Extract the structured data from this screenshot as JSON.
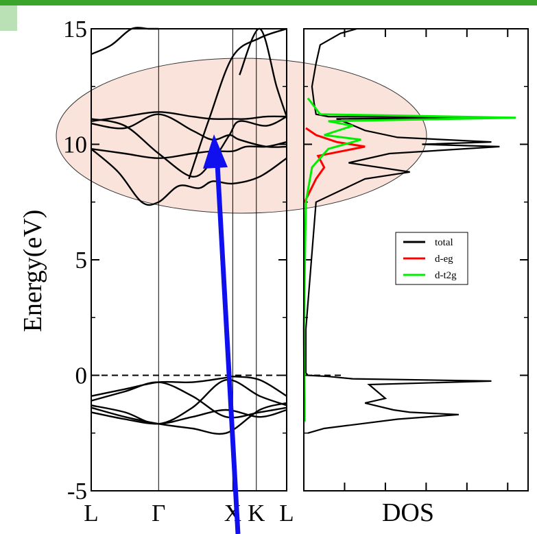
{
  "colors": {
    "frame_green": "#3aa52a",
    "band_line": "#000000",
    "highlight_fill": "#f7d9cf",
    "highlight_stroke": "#333333",
    "arrow": "#1010ee",
    "total": "#000000",
    "d_eg": "#ff0000",
    "d_t2g": "#00ee00"
  },
  "chart_data": [
    {
      "type": "line",
      "panel": "band-structure",
      "ylabel": "Energy(eV)",
      "ylim": [
        -5,
        15
      ],
      "yticks": [
        -5,
        0,
        5,
        10,
        15
      ],
      "ytick_labels": [
        "-5",
        "0",
        "5",
        "10",
        "15"
      ],
      "kpath_labels": [
        "L",
        "Γ",
        "X",
        "K",
        "L"
      ],
      "kpath_positions": [
        0,
        1,
        2.1,
        2.45,
        2.9
      ],
      "fermi_level": 0,
      "series": [
        {
          "x": [
            0,
            0.3,
            0.6,
            0.85,
            1.0
          ],
          "y": [
            13.9,
            14.3,
            15.0,
            15.0,
            15.0
          ]
        },
        {
          "x": [
            2.2,
            2.5,
            2.75,
            2.9
          ],
          "y": [
            13.0,
            15.0,
            12.5,
            11.2
          ]
        },
        {
          "x": [
            0,
            0.5,
            1.0,
            1.5,
            1.8,
            2.1,
            2.3,
            2.6,
            2.9
          ],
          "y": [
            11.0,
            11.2,
            11.4,
            11.2,
            11.1,
            11.1,
            11.1,
            11.2,
            11.2
          ]
        },
        {
          "x": [
            0,
            0.5,
            1.0,
            1.5,
            1.8,
            2.05,
            2.2,
            2.6,
            2.9
          ],
          "y": [
            11.1,
            10.8,
            9.6,
            8.6,
            9.3,
            10.4,
            11.0,
            10.8,
            11.2
          ]
        },
        {
          "x": [
            0,
            0.5,
            1.0,
            1.5,
            1.8,
            2.05,
            2.2,
            2.6,
            2.9
          ],
          "y": [
            10.9,
            10.7,
            11.3,
            10.6,
            10.2,
            10.4,
            10.2,
            9.9,
            9.9
          ]
        },
        {
          "x": [
            0,
            0.5,
            1.0,
            1.5,
            1.8,
            2.1,
            2.3,
            2.6,
            2.9
          ],
          "y": [
            9.8,
            9.6,
            9.4,
            9.6,
            9.7,
            9.7,
            9.9,
            9.9,
            10.1
          ]
        },
        {
          "x": [
            0,
            0.4,
            0.75,
            1.0,
            1.3,
            1.6,
            1.8,
            2.1,
            2.5,
            2.9
          ],
          "y": [
            9.8,
            8.8,
            7.5,
            7.5,
            8.2,
            8.1,
            8.4,
            8.3,
            8.6,
            9.4
          ]
        },
        {
          "x": [
            1.45,
            1.75,
            2.1,
            2.5,
            2.9
          ],
          "y": [
            8.5,
            11.1,
            13.8,
            14.6,
            15.0
          ]
        },
        {
          "x": [
            0,
            0.5,
            1.0,
            1.5,
            2.0,
            2.1,
            2.5,
            2.9
          ],
          "y": [
            -0.9,
            -0.6,
            -0.3,
            -0.3,
            -0.1,
            -0.05,
            -0.2,
            -0.9
          ]
        },
        {
          "x": [
            0,
            0.5,
            1.0,
            1.5,
            2.0,
            2.5,
            2.9
          ],
          "y": [
            -1.1,
            -0.7,
            -0.3,
            -0.9,
            -1.8,
            -1.6,
            -1.4
          ]
        },
        {
          "x": [
            0,
            0.5,
            1.0,
            1.5,
            2.0,
            2.5,
            2.9
          ],
          "y": [
            -1.3,
            -1.6,
            -2.1,
            -1.4,
            -0.2,
            -0.9,
            -1.3
          ]
        },
        {
          "x": [
            0,
            0.5,
            1.0,
            1.5,
            2.0,
            2.5,
            2.9
          ],
          "y": [
            -1.4,
            -1.8,
            -2.1,
            -2.3,
            -2.5,
            -1.5,
            -1.2
          ]
        },
        {
          "x": [
            0,
            0.5,
            1.0,
            1.5,
            2.0,
            2.5,
            2.9
          ],
          "y": [
            -1.6,
            -1.9,
            -2.1,
            -1.8,
            -1.5,
            -1.8,
            -1.5
          ]
        }
      ]
    },
    {
      "type": "line",
      "panel": "dos",
      "xlabel": "DOS",
      "ylim": [
        -5,
        15
      ],
      "legend_position": "center-right",
      "legend": [
        "total",
        "d-eg",
        "d-t2g"
      ],
      "series": [
        {
          "name": "total",
          "y": [
            -2.5,
            -2.3,
            -1.9,
            -1.7,
            -1.6,
            -1.5,
            -1.2,
            -1.0,
            -0.7,
            -0.4,
            -0.25,
            -0.15,
            -0.05,
            0.0,
            0.1,
            2.0,
            7.5,
            8.5,
            8.8,
            9.2,
            9.6,
            9.9,
            10.0,
            10.1,
            10.3,
            10.6,
            10.9,
            11.1,
            11.15,
            11.2,
            11.3,
            11.8,
            12.5,
            13.5,
            14.3,
            14.8,
            15.0
          ],
          "x": [
            0.1,
            0.5,
            2.3,
            3.8,
            2.6,
            2.2,
            1.5,
            2.0,
            1.8,
            1.6,
            4.6,
            1.2,
            0.6,
            0.1,
            0.05,
            0.05,
            0.3,
            1.5,
            2.6,
            1.1,
            2.1,
            4.8,
            2.9,
            4.6,
            2.3,
            1.5,
            1.1,
            0.8,
            5.2,
            0.6,
            0.3,
            0.25,
            0.2,
            0.3,
            0.4,
            0.9,
            1.3
          ]
        },
        {
          "name": "d-eg",
          "y": [
            7.5,
            8.5,
            9.0,
            9.5,
            9.9,
            10.1,
            10.4,
            10.7
          ],
          "x": [
            0.02,
            0.3,
            0.5,
            0.35,
            1.5,
            0.8,
            0.3,
            0.05
          ]
        },
        {
          "name": "d-t2g",
          "y": [
            -2.0,
            -1.0,
            0.0,
            2.0,
            7.5,
            9.0,
            9.8,
            10.2,
            10.4,
            10.8,
            11.0,
            11.15,
            11.3,
            12.0
          ],
          "x": [
            0.02,
            0.02,
            0.01,
            0.0,
            0.05,
            0.2,
            0.6,
            1.4,
            0.5,
            1.2,
            0.6,
            5.2,
            0.4,
            0.1
          ]
        }
      ]
    }
  ]
}
